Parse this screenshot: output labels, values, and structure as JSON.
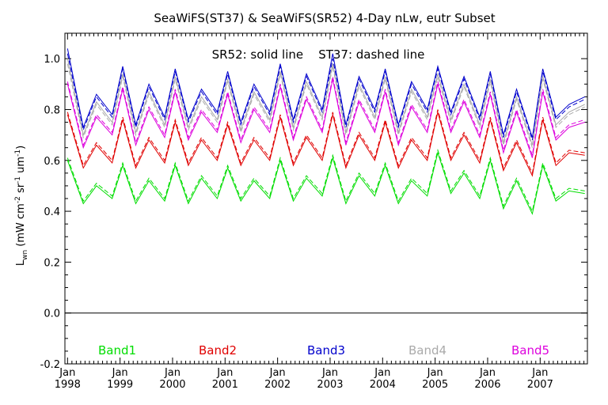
{
  "chart_data": {
    "type": "line",
    "title": "SeaWiFS(ST37) & SeaWiFS(SR52) 4-Day nLw, eutr Subset",
    "annotation": "SR52: solid line    ST37: dashed line",
    "ylabel": "L_wn (mW cm^-2 sr^-1 um^-1)",
    "ylabel_parts": {
      "main": "L",
      "sub": "wn",
      "rest1": " (mW cm",
      "sup1": "-2",
      "rest2": " sr",
      "sup2": "-1",
      "rest3": " um",
      "sup3": "-1",
      "rest4": ")"
    },
    "xlabel": "",
    "xlim": [
      1997.95,
      2007.9
    ],
    "ylim": [
      -0.2,
      1.1
    ],
    "yticks": [
      "-0.2",
      "0.0",
      "0.2",
      "0.4",
      "0.6",
      "0.8",
      "1.0"
    ],
    "ytick_values": [
      -0.2,
      0.0,
      0.2,
      0.4,
      0.6,
      0.8,
      1.0
    ],
    "xticks": [
      {
        "month": "Jan",
        "year": "1998",
        "x": 1998.0
      },
      {
        "month": "Jan",
        "year": "1999",
        "x": 1999.0
      },
      {
        "month": "Jan",
        "year": "2000",
        "x": 2000.0
      },
      {
        "month": "Jan",
        "year": "2001",
        "x": 2001.0
      },
      {
        "month": "Jan",
        "year": "2002",
        "x": 2002.0
      },
      {
        "month": "Jan",
        "year": "2003",
        "x": 2003.0
      },
      {
        "month": "Jan",
        "year": "2004",
        "x": 2004.0
      },
      {
        "month": "Jan",
        "year": "2005",
        "x": 2005.0
      },
      {
        "month": "Jan",
        "year": "2006",
        "x": 2006.0
      },
      {
        "month": "Jan",
        "year": "2007",
        "x": 2007.0
      }
    ],
    "zero_line": 0.0,
    "legend_placement": "bottom",
    "grid": false,
    "series": [
      {
        "name": "Band1",
        "color": "#00dd00",
        "x": [
          1998.0,
          1998.3,
          1998.55,
          1998.85,
          1999.05,
          1999.3,
          1999.55,
          1999.85,
          2000.05,
          2000.3,
          2000.55,
          2000.85,
          2001.05,
          2001.3,
          2001.55,
          2001.85,
          2002.05,
          2002.3,
          2002.55,
          2002.85,
          2003.05,
          2003.3,
          2003.55,
          2003.85,
          2004.05,
          2004.3,
          2004.55,
          2004.85,
          2005.05,
          2005.3,
          2005.55,
          2005.85,
          2006.05,
          2006.3,
          2006.55,
          2006.85,
          2007.05,
          2007.3,
          2007.55,
          2007.85
        ],
        "solid": [
          0.6,
          0.43,
          0.5,
          0.45,
          0.58,
          0.43,
          0.52,
          0.44,
          0.58,
          0.43,
          0.53,
          0.45,
          0.57,
          0.44,
          0.52,
          0.45,
          0.6,
          0.44,
          0.53,
          0.46,
          0.61,
          0.43,
          0.54,
          0.46,
          0.58,
          0.43,
          0.52,
          0.46,
          0.63,
          0.47,
          0.55,
          0.45,
          0.6,
          0.41,
          0.52,
          0.39,
          0.58,
          0.44,
          0.48,
          0.47
        ],
        "dashed": [
          0.61,
          0.44,
          0.51,
          0.46,
          0.59,
          0.44,
          0.53,
          0.45,
          0.59,
          0.44,
          0.54,
          0.46,
          0.58,
          0.45,
          0.53,
          0.46,
          0.61,
          0.45,
          0.54,
          0.47,
          0.62,
          0.44,
          0.55,
          0.47,
          0.59,
          0.44,
          0.53,
          0.47,
          0.64,
          0.48,
          0.56,
          0.46,
          0.61,
          0.42,
          0.53,
          0.4,
          0.59,
          0.45,
          0.49,
          0.48
        ]
      },
      {
        "name": "Band2",
        "color": "#e00000",
        "x": [
          1998.0,
          1998.3,
          1998.55,
          1998.85,
          1999.05,
          1999.3,
          1999.55,
          1999.85,
          2000.05,
          2000.3,
          2000.55,
          2000.85,
          2001.05,
          2001.3,
          2001.55,
          2001.85,
          2002.05,
          2002.3,
          2002.55,
          2002.85,
          2003.05,
          2003.3,
          2003.55,
          2003.85,
          2004.05,
          2004.3,
          2004.55,
          2004.85,
          2005.05,
          2005.3,
          2005.55,
          2005.85,
          2006.05,
          2006.3,
          2006.55,
          2006.85,
          2007.05,
          2007.3,
          2007.55,
          2007.85
        ],
        "solid": [
          0.78,
          0.57,
          0.66,
          0.59,
          0.76,
          0.57,
          0.68,
          0.59,
          0.75,
          0.58,
          0.68,
          0.6,
          0.74,
          0.58,
          0.68,
          0.6,
          0.77,
          0.58,
          0.69,
          0.6,
          0.78,
          0.57,
          0.7,
          0.6,
          0.75,
          0.57,
          0.68,
          0.6,
          0.79,
          0.6,
          0.7,
          0.59,
          0.76,
          0.56,
          0.67,
          0.54,
          0.76,
          0.58,
          0.63,
          0.62
        ],
        "dashed": [
          0.79,
          0.58,
          0.67,
          0.6,
          0.77,
          0.58,
          0.69,
          0.6,
          0.76,
          0.59,
          0.69,
          0.61,
          0.75,
          0.59,
          0.69,
          0.61,
          0.78,
          0.59,
          0.7,
          0.61,
          0.79,
          0.58,
          0.71,
          0.61,
          0.76,
          0.58,
          0.69,
          0.61,
          0.8,
          0.61,
          0.71,
          0.6,
          0.77,
          0.57,
          0.68,
          0.55,
          0.77,
          0.59,
          0.64,
          0.63
        ]
      },
      {
        "name": "Band3",
        "color": "#0000cc",
        "x": [
          1998.0,
          1998.3,
          1998.55,
          1998.85,
          1999.05,
          1999.3,
          1999.55,
          1999.85,
          2000.05,
          2000.3,
          2000.55,
          2000.85,
          2001.05,
          2001.3,
          2001.55,
          2001.85,
          2002.05,
          2002.3,
          2002.55,
          2002.85,
          2003.05,
          2003.3,
          2003.55,
          2003.85,
          2004.05,
          2004.3,
          2004.55,
          2004.85,
          2005.05,
          2005.3,
          2005.55,
          2005.85,
          2006.05,
          2006.3,
          2006.55,
          2006.85,
          2007.05,
          2007.3,
          2007.55,
          2007.85
        ],
        "solid": [
          1.04,
          0.73,
          0.86,
          0.78,
          0.97,
          0.74,
          0.9,
          0.77,
          0.96,
          0.76,
          0.88,
          0.79,
          0.95,
          0.75,
          0.9,
          0.79,
          0.98,
          0.76,
          0.94,
          0.8,
          1.02,
          0.74,
          0.93,
          0.8,
          0.96,
          0.74,
          0.91,
          0.8,
          0.97,
          0.79,
          0.93,
          0.77,
          0.95,
          0.7,
          0.88,
          0.69,
          0.96,
          0.77,
          0.82,
          0.85
        ],
        "dashed": [
          1.02,
          0.72,
          0.85,
          0.77,
          0.96,
          0.73,
          0.89,
          0.76,
          0.95,
          0.75,
          0.87,
          0.78,
          0.94,
          0.74,
          0.89,
          0.78,
          0.97,
          0.75,
          0.93,
          0.79,
          1.0,
          0.73,
          0.92,
          0.79,
          0.95,
          0.73,
          0.9,
          0.79,
          0.96,
          0.78,
          0.92,
          0.76,
          0.94,
          0.69,
          0.87,
          0.68,
          0.95,
          0.76,
          0.81,
          0.84
        ]
      },
      {
        "name": "Band4",
        "color": "#aaaaaa",
        "x": [
          1998.0,
          1998.3,
          1998.55,
          1998.85,
          1999.05,
          1999.3,
          1999.55,
          1999.85,
          2000.05,
          2000.3,
          2000.55,
          2000.85,
          2001.05,
          2001.3,
          2001.55,
          2001.85,
          2002.05,
          2002.3,
          2002.55,
          2002.85,
          2003.05,
          2003.3,
          2003.55,
          2003.85,
          2004.05,
          2004.3,
          2004.55,
          2004.85,
          2005.05,
          2005.3,
          2005.55,
          2005.85,
          2006.05,
          2006.3,
          2006.55,
          2006.85,
          2007.05,
          2007.3,
          2007.55,
          2007.85
        ],
        "solid": [
          1.0,
          0.7,
          0.83,
          0.75,
          0.94,
          0.71,
          0.87,
          0.74,
          0.93,
          0.73,
          0.85,
          0.76,
          0.92,
          0.72,
          0.87,
          0.76,
          0.95,
          0.73,
          0.91,
          0.77,
          0.98,
          0.71,
          0.9,
          0.77,
          0.93,
          0.71,
          0.88,
          0.77,
          0.94,
          0.76,
          0.9,
          0.74,
          0.92,
          0.67,
          0.85,
          0.66,
          0.93,
          0.74,
          0.79,
          0.82
        ],
        "dashed": [
          0.98,
          0.69,
          0.82,
          0.74,
          0.93,
          0.7,
          0.86,
          0.73,
          0.92,
          0.72,
          0.84,
          0.75,
          0.91,
          0.71,
          0.86,
          0.75,
          0.94,
          0.72,
          0.9,
          0.76,
          0.97,
          0.7,
          0.89,
          0.76,
          0.92,
          0.7,
          0.87,
          0.76,
          0.93,
          0.75,
          0.89,
          0.73,
          0.91,
          0.66,
          0.84,
          0.65,
          0.92,
          0.73,
          0.78,
          0.81
        ]
      },
      {
        "name": "Band5",
        "color": "#dd00dd",
        "x": [
          1998.0,
          1998.3,
          1998.55,
          1998.85,
          1999.05,
          1999.3,
          1999.55,
          1999.85,
          2000.05,
          2000.3,
          2000.55,
          2000.85,
          2001.05,
          2001.3,
          2001.55,
          2001.85,
          2002.05,
          2002.3,
          2002.55,
          2002.85,
          2003.05,
          2003.3,
          2003.55,
          2003.85,
          2004.05,
          2004.3,
          2004.55,
          2004.85,
          2005.05,
          2005.3,
          2005.55,
          2005.85,
          2006.05,
          2006.3,
          2006.55,
          2006.85,
          2007.05,
          2007.3,
          2007.55,
          2007.85
        ],
        "solid": [
          0.9,
          0.65,
          0.77,
          0.7,
          0.88,
          0.66,
          0.8,
          0.69,
          0.87,
          0.68,
          0.79,
          0.71,
          0.86,
          0.67,
          0.8,
          0.71,
          0.89,
          0.68,
          0.84,
          0.71,
          0.92,
          0.66,
          0.83,
          0.71,
          0.87,
          0.66,
          0.81,
          0.71,
          0.9,
          0.71,
          0.83,
          0.69,
          0.86,
          0.63,
          0.79,
          0.61,
          0.87,
          0.68,
          0.73,
          0.75
        ],
        "dashed": [
          0.91,
          0.66,
          0.78,
          0.71,
          0.89,
          0.67,
          0.81,
          0.7,
          0.88,
          0.69,
          0.8,
          0.72,
          0.87,
          0.68,
          0.81,
          0.72,
          0.9,
          0.69,
          0.85,
          0.72,
          0.93,
          0.67,
          0.84,
          0.72,
          0.88,
          0.67,
          0.82,
          0.72,
          0.91,
          0.72,
          0.84,
          0.7,
          0.87,
          0.64,
          0.8,
          0.62,
          0.88,
          0.69,
          0.74,
          0.76
        ]
      }
    ]
  }
}
